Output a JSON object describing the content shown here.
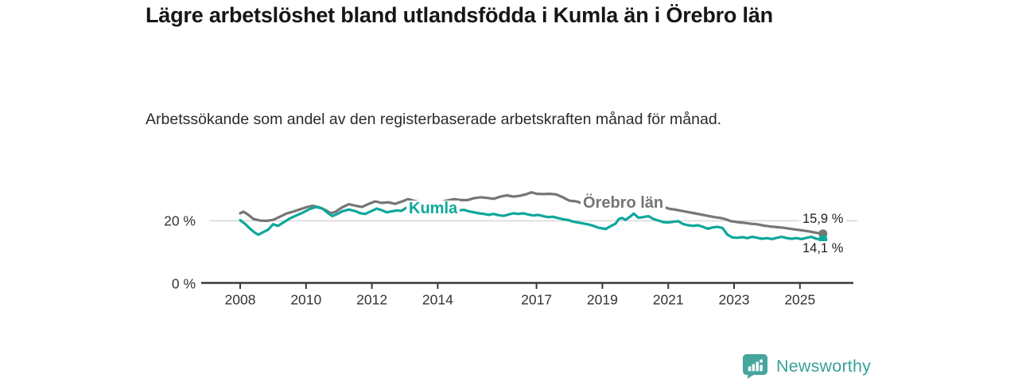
{
  "header": {
    "title": "Lägre arbetslöshet bland utlandsfödda i Kumla än i Örebro län",
    "subtitle": "Arbetssökande som andel av den registerbaserade arbetskraften månad för månad."
  },
  "branding": {
    "logo_text": "Newsworthy",
    "logo_icon": "bar-chart-speech-bubble-icon",
    "logo_color": "#46a69e"
  },
  "chart_data": {
    "type": "line",
    "title": "Lägre arbetslöshet bland utlandsfödda i Kumla än i Örebro län",
    "subtitle": "Arbetssökande som andel av den registerbaserade arbetskraften månad för månad.",
    "unit": "%",
    "grid": "horizontal-20-only",
    "legend": "inline-labels-on-lines",
    "xlim": [
      2007.7,
      2026.2
    ],
    "ylim": [
      0,
      30
    ],
    "x_ticks": [
      "2008",
      "2010",
      "2012",
      "2014",
      "2017",
      "2019",
      "2021",
      "2023",
      "2025"
    ],
    "x_tick_years": [
      2008,
      2010,
      2012,
      2014,
      2017,
      2019,
      2021,
      2023,
      2025
    ],
    "y_ticks": [
      {
        "value": 0,
        "label": "0 %"
      },
      {
        "value": 20,
        "label": "20 %"
      }
    ],
    "colors": {
      "kumla": "#0ea79c",
      "orebro": "#767676",
      "grid": "#d7d7d7",
      "axis": "#383838"
    },
    "series": [
      {
        "name": "Örebro län",
        "color": "#767676",
        "end_label": "15,9 %",
        "end_value": 15.9,
        "points": [
          [
            2008.0,
            22.4
          ],
          [
            2008.1,
            22.9
          ],
          [
            2008.25,
            21.9
          ],
          [
            2008.4,
            20.6
          ],
          [
            2008.6,
            20.1
          ],
          [
            2008.8,
            20.0
          ],
          [
            2009.0,
            20.3
          ],
          [
            2009.2,
            21.3
          ],
          [
            2009.4,
            22.3
          ],
          [
            2009.6,
            22.9
          ],
          [
            2009.8,
            23.6
          ],
          [
            2010.0,
            24.3
          ],
          [
            2010.2,
            24.8
          ],
          [
            2010.4,
            24.3
          ],
          [
            2010.6,
            23.4
          ],
          [
            2010.75,
            22.4
          ],
          [
            2010.9,
            22.9
          ],
          [
            2011.1,
            24.3
          ],
          [
            2011.3,
            25.3
          ],
          [
            2011.5,
            24.8
          ],
          [
            2011.7,
            24.4
          ],
          [
            2011.9,
            25.4
          ],
          [
            2012.1,
            26.2
          ],
          [
            2012.3,
            25.7
          ],
          [
            2012.5,
            25.9
          ],
          [
            2012.7,
            25.4
          ],
          [
            2012.9,
            26.1
          ],
          [
            2013.1,
            26.9
          ],
          [
            2013.3,
            26.3
          ],
          [
            2013.5,
            25.9
          ],
          [
            2013.7,
            25.6
          ],
          [
            2013.9,
            25.4
          ],
          [
            2014.1,
            26.0
          ],
          [
            2014.3,
            26.5
          ],
          [
            2014.5,
            26.9
          ],
          [
            2014.7,
            26.6
          ],
          [
            2014.9,
            26.6
          ],
          [
            2015.1,
            27.2
          ],
          [
            2015.3,
            27.5
          ],
          [
            2015.5,
            27.3
          ],
          [
            2015.7,
            27.0
          ],
          [
            2015.9,
            27.7
          ],
          [
            2016.1,
            28.1
          ],
          [
            2016.3,
            27.7
          ],
          [
            2016.5,
            28.0
          ],
          [
            2016.7,
            28.5
          ],
          [
            2016.85,
            29.1
          ],
          [
            2017.0,
            28.6
          ],
          [
            2017.2,
            28.5
          ],
          [
            2017.4,
            28.6
          ],
          [
            2017.6,
            28.4
          ],
          [
            2017.8,
            27.5
          ],
          [
            2018.0,
            26.4
          ],
          [
            2018.2,
            26.2
          ],
          [
            2018.45,
            25.4
          ],
          [
            2018.7,
            24.9
          ],
          [
            2019.0,
            24.5
          ],
          [
            2019.3,
            24.2
          ],
          [
            2019.6,
            24.0
          ],
          [
            2019.9,
            24.4
          ],
          [
            2020.2,
            24.9
          ],
          [
            2020.5,
            25.2
          ],
          [
            2020.8,
            24.6
          ],
          [
            2021.05,
            23.8
          ],
          [
            2021.2,
            23.6
          ],
          [
            2021.4,
            23.2
          ],
          [
            2021.6,
            22.8
          ],
          [
            2021.8,
            22.4
          ],
          [
            2022.0,
            22.0
          ],
          [
            2022.2,
            21.6
          ],
          [
            2022.4,
            21.2
          ],
          [
            2022.6,
            20.9
          ],
          [
            2022.75,
            20.5
          ],
          [
            2022.9,
            19.9
          ],
          [
            2023.1,
            19.6
          ],
          [
            2023.3,
            19.4
          ],
          [
            2023.5,
            19.1
          ],
          [
            2023.7,
            18.9
          ],
          [
            2023.9,
            18.5
          ],
          [
            2024.1,
            18.2
          ],
          [
            2024.3,
            18.0
          ],
          [
            2024.5,
            17.8
          ],
          [
            2024.7,
            17.5
          ],
          [
            2024.9,
            17.2
          ],
          [
            2025.1,
            16.9
          ],
          [
            2025.3,
            16.6
          ],
          [
            2025.5,
            16.2
          ],
          [
            2025.7,
            15.9
          ]
        ]
      },
      {
        "name": "Kumla",
        "color": "#0ea79c",
        "end_label": "14,1 %",
        "end_value": 14.1,
        "points": [
          [
            2008.0,
            20.2
          ],
          [
            2008.15,
            19.0
          ],
          [
            2008.3,
            17.5
          ],
          [
            2008.45,
            16.2
          ],
          [
            2008.55,
            15.6
          ],
          [
            2008.7,
            16.4
          ],
          [
            2008.85,
            17.2
          ],
          [
            2009.0,
            18.9
          ],
          [
            2009.15,
            18.4
          ],
          [
            2009.3,
            19.4
          ],
          [
            2009.5,
            20.7
          ],
          [
            2009.7,
            21.7
          ],
          [
            2009.9,
            22.6
          ],
          [
            2010.1,
            23.7
          ],
          [
            2010.3,
            24.4
          ],
          [
            2010.5,
            23.9
          ],
          [
            2010.65,
            22.6
          ],
          [
            2010.8,
            21.5
          ],
          [
            2010.95,
            22.2
          ],
          [
            2011.1,
            23.0
          ],
          [
            2011.3,
            23.6
          ],
          [
            2011.5,
            23.1
          ],
          [
            2011.65,
            22.4
          ],
          [
            2011.8,
            22.2
          ],
          [
            2012.0,
            23.2
          ],
          [
            2012.15,
            23.9
          ],
          [
            2012.3,
            23.4
          ],
          [
            2012.45,
            22.7
          ],
          [
            2012.6,
            23.0
          ],
          [
            2012.75,
            23.3
          ],
          [
            2012.9,
            23.2
          ],
          [
            2013.05,
            24.2
          ],
          [
            2013.2,
            23.7
          ],
          [
            2013.4,
            23.2
          ],
          [
            2013.6,
            22.9
          ],
          [
            2013.8,
            22.7
          ],
          [
            2014.0,
            23.0
          ],
          [
            2014.2,
            23.3
          ],
          [
            2014.4,
            23.1
          ],
          [
            2014.6,
            23.3
          ],
          [
            2014.8,
            23.5
          ],
          [
            2014.95,
            23.0
          ],
          [
            2015.1,
            22.7
          ],
          [
            2015.25,
            22.4
          ],
          [
            2015.4,
            22.2
          ],
          [
            2015.55,
            21.9
          ],
          [
            2015.7,
            22.2
          ],
          [
            2015.85,
            21.8
          ],
          [
            2016.0,
            21.6
          ],
          [
            2016.15,
            22.0
          ],
          [
            2016.3,
            22.4
          ],
          [
            2016.45,
            22.2
          ],
          [
            2016.6,
            22.4
          ],
          [
            2016.75,
            22.0
          ],
          [
            2016.9,
            21.7
          ],
          [
            2017.05,
            21.9
          ],
          [
            2017.2,
            21.5
          ],
          [
            2017.35,
            21.2
          ],
          [
            2017.5,
            21.3
          ],
          [
            2017.65,
            20.9
          ],
          [
            2017.8,
            20.5
          ],
          [
            2017.95,
            20.3
          ],
          [
            2018.1,
            19.8
          ],
          [
            2018.25,
            19.5
          ],
          [
            2018.4,
            19.2
          ],
          [
            2018.55,
            18.9
          ],
          [
            2018.7,
            18.5
          ],
          [
            2018.85,
            17.9
          ],
          [
            2019.0,
            17.6
          ],
          [
            2019.1,
            17.4
          ],
          [
            2019.25,
            18.3
          ],
          [
            2019.4,
            19.1
          ],
          [
            2019.5,
            20.6
          ],
          [
            2019.6,
            20.9
          ],
          [
            2019.7,
            20.3
          ],
          [
            2019.85,
            21.4
          ],
          [
            2019.95,
            22.3
          ],
          [
            2020.1,
            21.0
          ],
          [
            2020.25,
            21.2
          ],
          [
            2020.4,
            21.5
          ],
          [
            2020.55,
            20.6
          ],
          [
            2020.7,
            20.1
          ],
          [
            2020.85,
            19.6
          ],
          [
            2021.0,
            19.5
          ],
          [
            2021.15,
            19.7
          ],
          [
            2021.3,
            19.9
          ],
          [
            2021.45,
            19.0
          ],
          [
            2021.6,
            18.6
          ],
          [
            2021.75,
            18.4
          ],
          [
            2021.9,
            18.6
          ],
          [
            2022.05,
            18.1
          ],
          [
            2022.2,
            17.5
          ],
          [
            2022.35,
            17.9
          ],
          [
            2022.5,
            18.1
          ],
          [
            2022.65,
            17.7
          ],
          [
            2022.8,
            15.6
          ],
          [
            2022.95,
            14.7
          ],
          [
            2023.1,
            14.6
          ],
          [
            2023.25,
            14.8
          ],
          [
            2023.4,
            14.5
          ],
          [
            2023.55,
            14.9
          ],
          [
            2023.7,
            14.6
          ],
          [
            2023.85,
            14.3
          ],
          [
            2024.0,
            14.5
          ],
          [
            2024.15,
            14.2
          ],
          [
            2024.3,
            14.6
          ],
          [
            2024.45,
            14.9
          ],
          [
            2024.6,
            14.5
          ],
          [
            2024.75,
            14.3
          ],
          [
            2024.9,
            14.5
          ],
          [
            2025.05,
            14.2
          ],
          [
            2025.2,
            14.6
          ],
          [
            2025.35,
            14.9
          ],
          [
            2025.5,
            14.3
          ],
          [
            2025.7,
            14.1
          ]
        ]
      }
    ]
  }
}
